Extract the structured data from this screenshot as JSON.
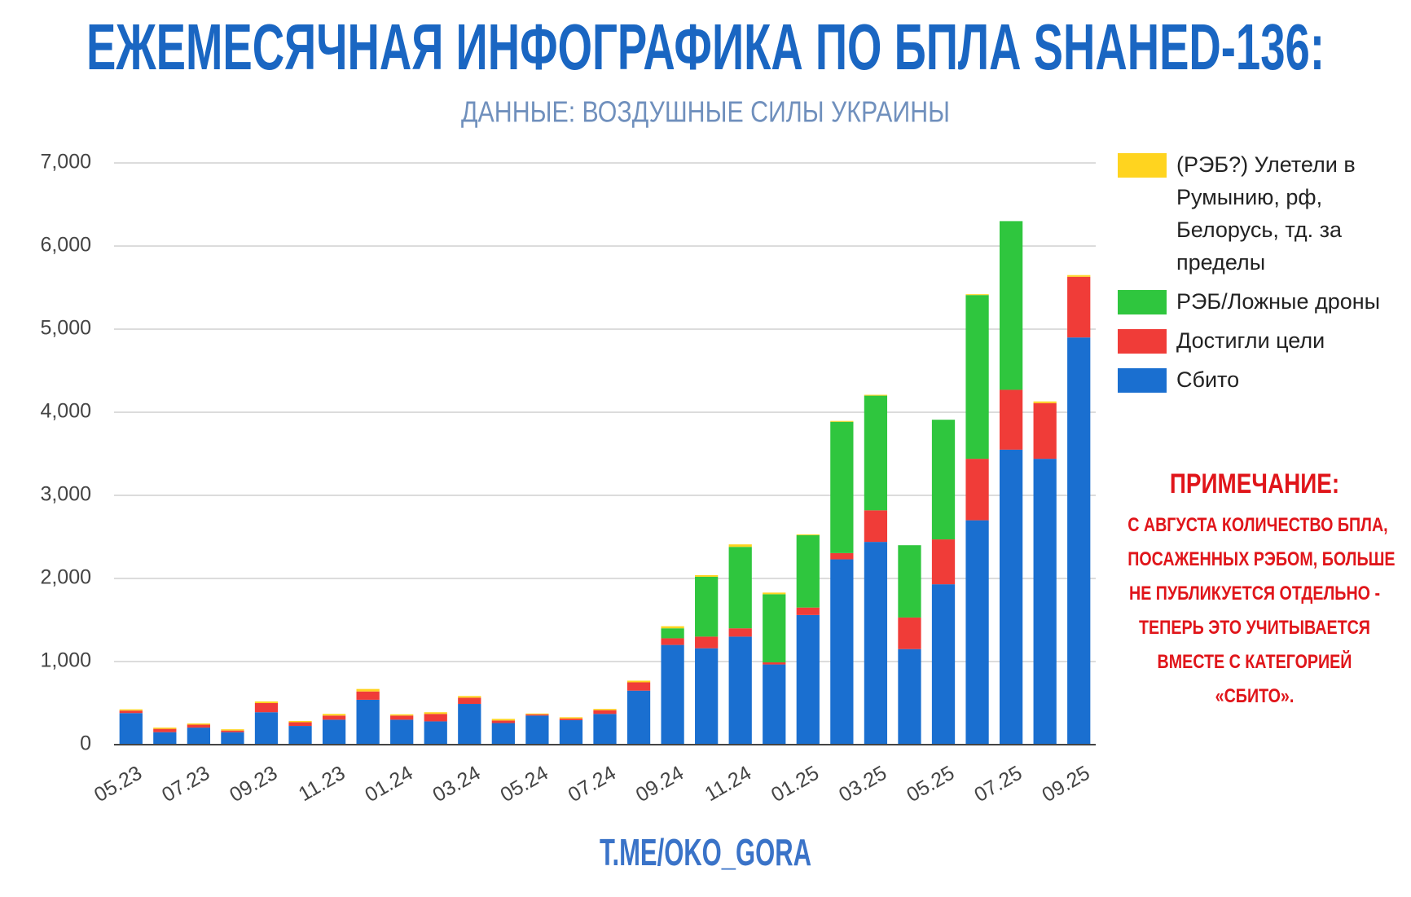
{
  "chart_data": {
    "type": "stacked_bar",
    "title": "ЕЖЕМЕСЯЧНАЯ ИНФОГРАФИКА ПО БПЛА SHAHED-136:",
    "subtitle": "ДАННЫЕ: ВОЗДУШНЫЕ СИЛЫ УКРАИНЫ",
    "footer": "T.ME/OKO_GORA",
    "note_title": "ПРИМЕЧАНИЕ:",
    "note_lines": [
      "С АВГУСТА КОЛИЧЕСТВО БПЛА,",
      "ПОСАЖЕННЫХ РЭБОМ, БОЛЬШЕ",
      "НЕ ПУБЛИКУЕТСЯ ОТДЕЛЬНО -",
      "ТЕПЕРЬ ЭТО УЧИТЫВАЕТСЯ",
      "ВМЕСТЕ С КАТЕГОРИЕЙ",
      "«СБИТО»."
    ],
    "categories": [
      "05.23",
      null,
      "07.23",
      null,
      "09.23",
      null,
      "11.23",
      null,
      "01.24",
      null,
      "03.24",
      null,
      "05.24",
      null,
      "07.24",
      null,
      "09.24",
      null,
      "11.24",
      null,
      "01.25",
      null,
      "03.25",
      null,
      "05.25",
      null,
      "07.25",
      null,
      "09.25"
    ],
    "series": [
      {
        "name": "Сбито",
        "color": "#1a6fd0",
        "values": [
          380,
          150,
          205,
          150,
          390,
          225,
          300,
          540,
          300,
          280,
          490,
          260,
          350,
          295,
          370,
          650,
          1200,
          1160,
          1300,
          965,
          1560,
          2230,
          2440,
          1150,
          1930,
          2700,
          3550,
          3440,
          4900
        ]
      },
      {
        "name": "Достигли цели",
        "color": "#f03c38",
        "values": [
          30,
          40,
          35,
          20,
          110,
          45,
          50,
          100,
          50,
          90,
          75,
          30,
          15,
          20,
          45,
          100,
          80,
          140,
          100,
          25,
          90,
          75,
          380,
          380,
          540,
          740,
          720,
          670,
          730
        ]
      },
      {
        "name": "РЭБ/Ложные дроны",
        "color": "#2fc63e",
        "values": [
          0,
          0,
          0,
          0,
          0,
          0,
          0,
          0,
          0,
          0,
          0,
          0,
          0,
          0,
          0,
          0,
          120,
          720,
          980,
          820,
          870,
          1580,
          1380,
          870,
          1440,
          1970,
          2030,
          0,
          0
        ]
      },
      {
        "name": "(РЭБ?) Улетели в Румынию, рф, Белорусь, тд. за пределы",
        "color": "#ffd41f",
        "values": [
          15,
          15,
          15,
          15,
          20,
          15,
          20,
          30,
          15,
          20,
          20,
          20,
          10,
          15,
          15,
          20,
          25,
          20,
          30,
          20,
          10,
          10,
          10,
          0,
          0,
          10,
          0,
          20,
          20
        ]
      }
    ],
    "ylim": [
      0,
      7000
    ],
    "yticks": [
      0,
      {
        "value": 1000,
        "label": "1,000"
      },
      {
        "value": 2000,
        "label": "2,000"
      },
      {
        "value": 3000,
        "label": "3,000"
      },
      {
        "value": 4000,
        "label": "4,000"
      },
      {
        "value": 5000,
        "label": "5,000"
      },
      {
        "value": 6000,
        "label": "6,000"
      },
      {
        "value": 7000,
        "label": "7,000"
      }
    ],
    "grid": true,
    "legend": "right"
  }
}
